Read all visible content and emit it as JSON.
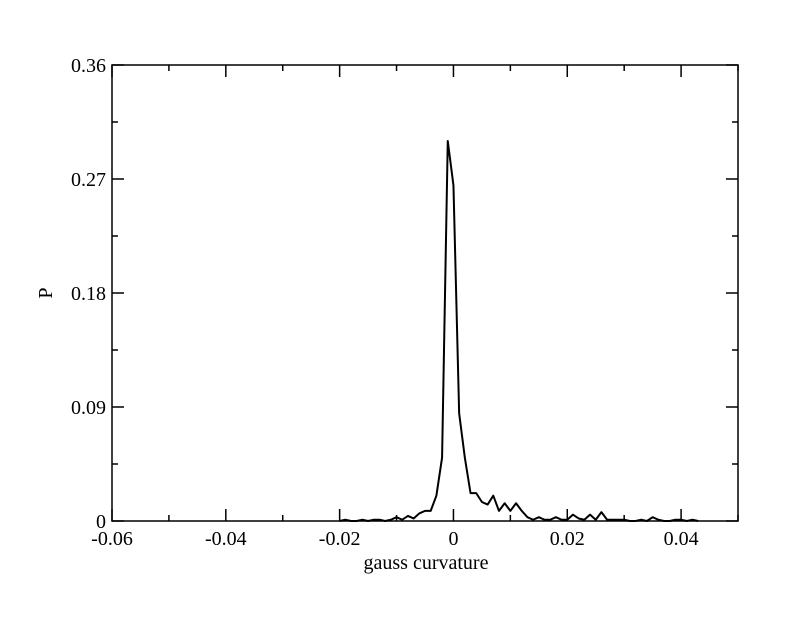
{
  "chart_data": {
    "type": "line",
    "xlabel": "gauss curvature",
    "ylabel": "P",
    "xlim": [
      -0.06,
      0.05
    ],
    "ylim": [
      0,
      0.36
    ],
    "xticks": [
      -0.06,
      -0.04,
      -0.02,
      0,
      0.02,
      0.04
    ],
    "xminorticks": [
      -0.05,
      -0.03,
      -0.01,
      0.01,
      0.03,
      0.05
    ],
    "yticks": [
      0,
      0.09,
      0.18,
      0.27,
      0.36
    ],
    "yminorticks": [
      0.045,
      0.135,
      0.225,
      0.315
    ],
    "color": "#000000",
    "x": [
      -0.02,
      -0.019,
      -0.018,
      -0.017,
      -0.016,
      -0.015,
      -0.014,
      -0.013,
      -0.012,
      -0.011,
      -0.01,
      -0.009,
      -0.008,
      -0.007,
      -0.006,
      -0.005,
      -0.004,
      -0.003,
      -0.002,
      -0.001,
      0.0,
      0.001,
      0.002,
      0.003,
      0.004,
      0.005,
      0.006,
      0.007,
      0.008,
      0.009,
      0.01,
      0.011,
      0.012,
      0.013,
      0.014,
      0.015,
      0.016,
      0.017,
      0.018,
      0.019,
      0.02,
      0.021,
      0.022,
      0.023,
      0.024,
      0.025,
      0.026,
      0.027,
      0.028,
      0.029,
      0.03,
      0.031,
      0.032,
      0.033,
      0.034,
      0.035,
      0.036,
      0.037,
      0.038,
      0.039,
      0.04,
      0.041,
      0.042,
      0.043
    ],
    "values": [
      0,
      0.001,
      0,
      0,
      0.001,
      0,
      0.001,
      0.001,
      0,
      0.001,
      0.003,
      0.001,
      0.004,
      0.002,
      0.006,
      0.008,
      0.008,
      0.02,
      0.05,
      0.3,
      0.265,
      0.085,
      0.05,
      0.022,
      0.022,
      0.015,
      0.013,
      0.02,
      0.008,
      0.014,
      0.008,
      0.014,
      0.008,
      0.003,
      0.001,
      0.003,
      0.001,
      0.001,
      0.003,
      0.001,
      0.001,
      0.005,
      0.002,
      0.001,
      0.005,
      0.001,
      0.007,
      0.001,
      0.001,
      0.001,
      0.001,
      0,
      0,
      0.001,
      0,
      0.003,
      0.001,
      0,
      0,
      0.001,
      0.001,
      0,
      0.001,
      0
    ]
  }
}
